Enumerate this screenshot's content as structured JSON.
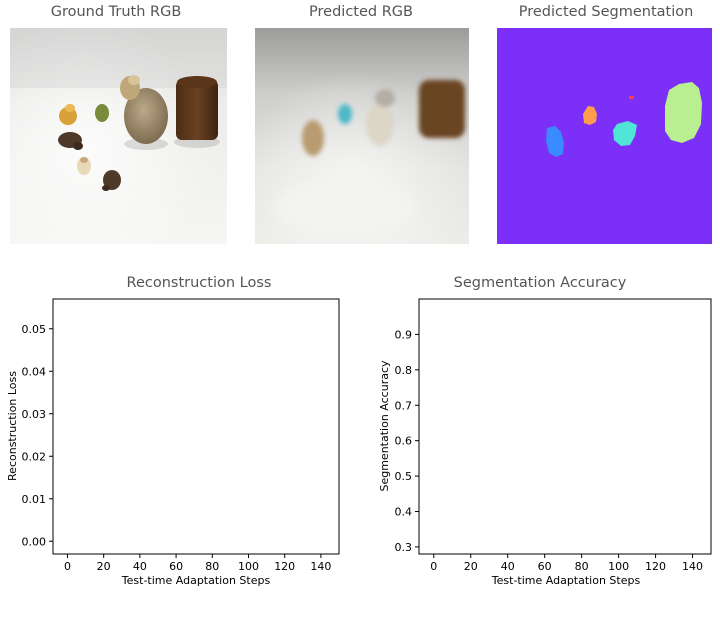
{
  "images": {
    "ground_truth": {
      "title": "Ground Truth RGB"
    },
    "predicted_rgb": {
      "title": "Predicted RGB"
    },
    "predicted_segmentation": {
      "title": "Predicted Segmentation"
    }
  },
  "colors": {
    "title_text": "#555555",
    "seg_background": "#7b2ff7",
    "seg_green": "#b9ef91",
    "seg_orange": "#ff9d4d",
    "seg_blue": "#3a8bff",
    "seg_cyan": "#4fe6d8",
    "seg_red": "#ff3d3d"
  },
  "chart_data": [
    {
      "type": "line",
      "title": "Reconstruction Loss",
      "xlabel": "Test-time Adaptation Steps",
      "ylabel": "Reconstruction Loss",
      "xlim": [
        -8,
        150
      ],
      "ylim": [
        -0.003,
        0.057
      ],
      "xticks": [
        0,
        20,
        40,
        60,
        80,
        100,
        120,
        140
      ],
      "xtick_labels": [
        "0",
        "20",
        "40",
        "60",
        "80",
        "100",
        "120",
        "140"
      ],
      "yticks": [
        0.0,
        0.01,
        0.02,
        0.03,
        0.04,
        0.05
      ],
      "ytick_labels": [
        "0.00",
        "0.01",
        "0.02",
        "0.03",
        "0.04",
        "0.05"
      ],
      "grid": false,
      "series": []
    },
    {
      "type": "line",
      "title": "Segmentation Accuracy",
      "xlabel": "Test-time Adaptation Steps",
      "ylabel": "Segmentation Accuracy",
      "xlim": [
        -8,
        150
      ],
      "ylim": [
        0.28,
        1.0
      ],
      "xticks": [
        0,
        20,
        40,
        60,
        80,
        100,
        120,
        140
      ],
      "xtick_labels": [
        "0",
        "20",
        "40",
        "60",
        "80",
        "100",
        "120",
        "140"
      ],
      "yticks": [
        0.3,
        0.4,
        0.5,
        0.6,
        0.7,
        0.8,
        0.9
      ],
      "ytick_labels": [
        "0.3",
        "0.4",
        "0.5",
        "0.6",
        "0.7",
        "0.8",
        "0.9"
      ],
      "grid": false,
      "series": []
    }
  ]
}
